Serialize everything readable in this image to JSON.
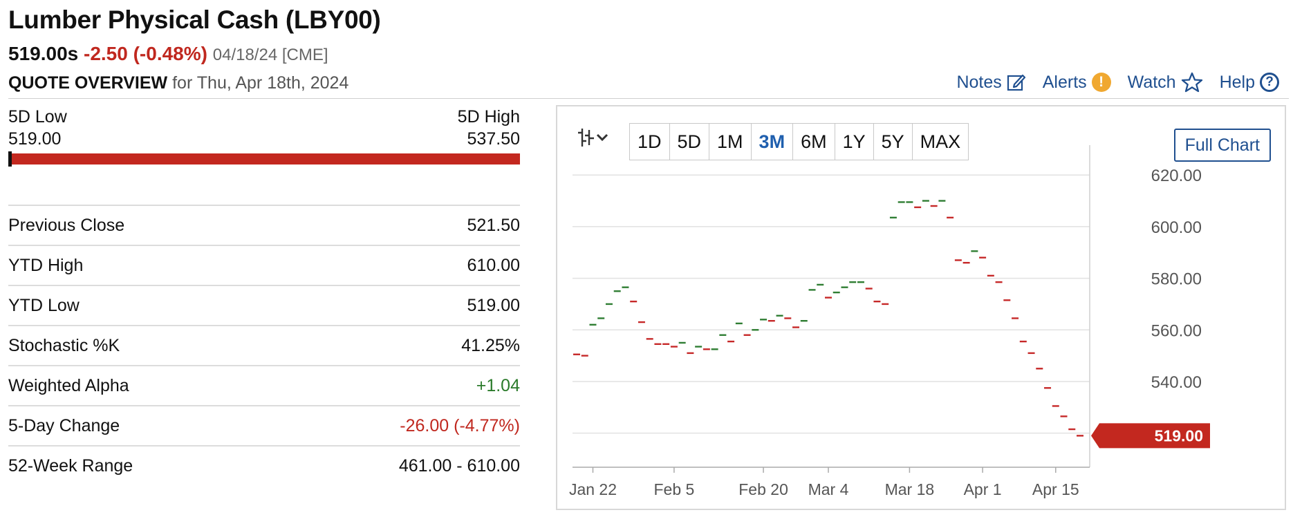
{
  "header": {
    "title": "Lumber Physical Cash (LBY00)",
    "last": "519.00s",
    "change": "-2.50 (-0.48%)",
    "meta": "04/18/24 [CME]",
    "overview_label": "QUOTE OVERVIEW",
    "overview_date": "for Thu, Apr 18th, 2024"
  },
  "links": {
    "notes": "Notes",
    "alerts": "Alerts",
    "watch": "Watch",
    "help": "Help"
  },
  "range_5d": {
    "low_label": "5D Low",
    "high_label": "5D High",
    "low": "519.00",
    "high": "537.50",
    "current_fraction": 0.0
  },
  "stats": [
    {
      "label": "Previous Close",
      "value": "521.50",
      "tone": ""
    },
    {
      "label": "YTD High",
      "value": "610.00",
      "tone": ""
    },
    {
      "label": "YTD Low",
      "value": "519.00",
      "tone": ""
    },
    {
      "label": "Stochastic %K",
      "value": "41.25%",
      "tone": ""
    },
    {
      "label": "Weighted Alpha",
      "value": "+1.04",
      "tone": "pos"
    },
    {
      "label": "5-Day Change",
      "value": "-26.00 (-4.77%)",
      "tone": "neg"
    },
    {
      "label": "52-Week Range",
      "value": "461.00 - 610.00",
      "tone": ""
    }
  ],
  "chart_toolbar": {
    "ranges": [
      "1D",
      "5D",
      "1M",
      "3M",
      "6M",
      "1Y",
      "5Y",
      "MAX"
    ],
    "active": "3M",
    "full_chart": "Full Chart"
  },
  "colors": {
    "up": "#2e7d32",
    "down": "#c62828",
    "accent": "#1f4f8f",
    "price_tag": "#c3281f"
  },
  "chart_data": {
    "type": "line",
    "style": "hlc-ticks",
    "x_ticks": [
      "Jan 22",
      "Feb 5",
      "Feb 20",
      "Mar 4",
      "Mar 18",
      "Apr 1",
      "Apr 15"
    ],
    "y_ticks": [
      "620.00",
      "600.00",
      "580.00",
      "560.00",
      "540.00"
    ],
    "ylim": [
      510,
      623
    ],
    "last_price_label": "519.00",
    "last_price": 519.0,
    "series": [
      {
        "values": [
          [
            550.5,
            -1
          ],
          [
            550.0,
            -1
          ],
          [
            562.0,
            1
          ],
          [
            564.5,
            1
          ],
          [
            570.0,
            1
          ],
          [
            575.0,
            1
          ],
          [
            576.5,
            1
          ],
          [
            571.0,
            -1
          ],
          [
            563.0,
            -1
          ],
          [
            556.5,
            -1
          ],
          [
            554.5,
            -1
          ],
          [
            554.5,
            -1
          ],
          [
            553.5,
            -1
          ],
          [
            555.0,
            1
          ],
          [
            551.0,
            -1
          ],
          [
            553.5,
            1
          ],
          [
            552.5,
            -1
          ],
          [
            552.5,
            1
          ],
          [
            558.0,
            1
          ],
          [
            555.5,
            -1
          ],
          [
            562.5,
            1
          ],
          [
            558.0,
            -1
          ],
          [
            560.0,
            1
          ],
          [
            564.0,
            1
          ],
          [
            563.5,
            -1
          ],
          [
            565.5,
            1
          ],
          [
            564.5,
            -1
          ],
          [
            561.0,
            -1
          ],
          [
            563.5,
            1
          ],
          [
            575.5,
            1
          ],
          [
            577.5,
            1
          ],
          [
            572.5,
            -1
          ],
          [
            574.5,
            1
          ],
          [
            576.5,
            1
          ],
          [
            578.5,
            1
          ],
          [
            578.5,
            1
          ],
          [
            576.0,
            -1
          ],
          [
            571.0,
            -1
          ],
          [
            570.0,
            -1
          ],
          [
            603.5,
            1
          ],
          [
            609.5,
            1
          ],
          [
            609.5,
            1
          ],
          [
            607.5,
            -1
          ],
          [
            610.0,
            1
          ],
          [
            608.0,
            -1
          ],
          [
            610.0,
            1
          ],
          [
            603.5,
            -1
          ],
          [
            587.0,
            -1
          ],
          [
            586.0,
            -1
          ],
          [
            590.5,
            1
          ],
          [
            588.0,
            -1
          ],
          [
            581.0,
            -1
          ],
          [
            578.5,
            -1
          ],
          [
            571.5,
            -1
          ],
          [
            564.5,
            -1
          ],
          [
            555.5,
            -1
          ],
          [
            551.0,
            -1
          ],
          [
            545.0,
            -1
          ],
          [
            537.5,
            -1
          ],
          [
            530.5,
            -1
          ],
          [
            526.5,
            -1
          ],
          [
            521.5,
            -1
          ],
          [
            519.0,
            -1
          ]
        ]
      }
    ]
  }
}
